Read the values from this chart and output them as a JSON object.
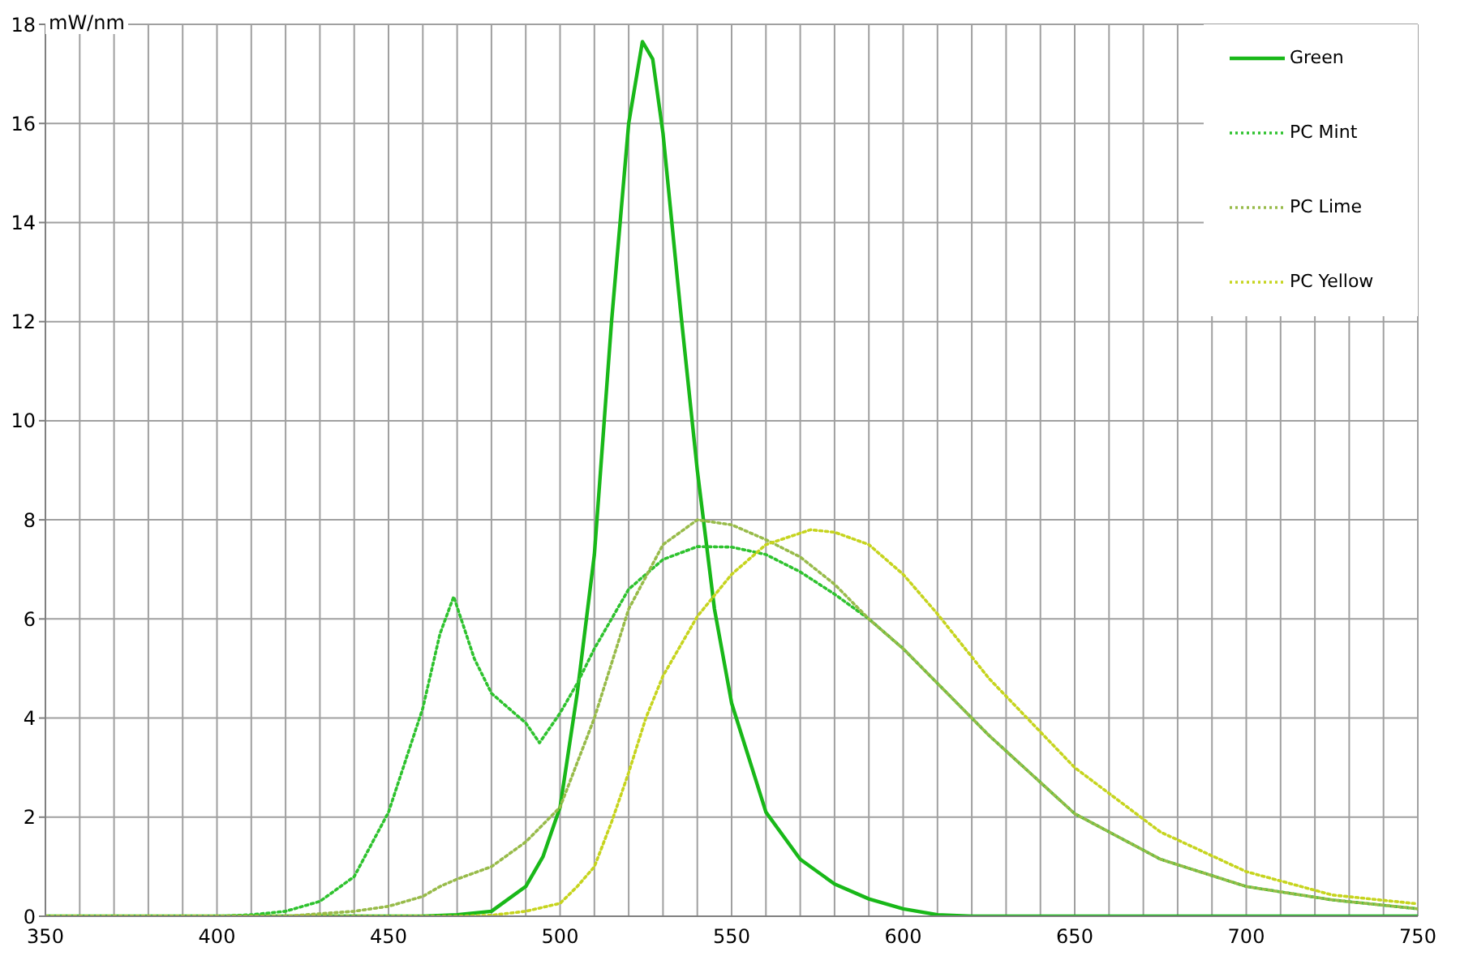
{
  "chart_data": {
    "type": "line",
    "ylabel": "mW/nm",
    "xlim": [
      350,
      750
    ],
    "ylim": [
      0,
      18
    ],
    "xticks": [
      350,
      {
        "value": 360,
        "label": null
      },
      {
        "value": 370,
        "label": null
      },
      {
        "value": 380,
        "label": null
      },
      {
        "value": 390,
        "label": null
      },
      400,
      {
        "value": 410,
        "label": null
      },
      {
        "value": 420,
        "label": null
      },
      {
        "value": 430,
        "label": null
      },
      {
        "value": 440,
        "label": null
      },
      450,
      {
        "value": 460,
        "label": null
      },
      {
        "value": 470,
        "label": null
      },
      {
        "value": 480,
        "label": null
      },
      {
        "value": 490,
        "label": null
      },
      500,
      {
        "value": 510,
        "label": null
      },
      {
        "value": 520,
        "label": null
      },
      {
        "value": 530,
        "label": null
      },
      {
        "value": 540,
        "label": null
      },
      550,
      {
        "value": 560,
        "label": null
      },
      {
        "value": 570,
        "label": null
      },
      {
        "value": 580,
        "label": null
      },
      {
        "value": 590,
        "label": null
      },
      600,
      {
        "value": 610,
        "label": null
      },
      {
        "value": 620,
        "label": null
      },
      {
        "value": 630,
        "label": null
      },
      {
        "value": 640,
        "label": null
      },
      650,
      {
        "value": 660,
        "label": null
      },
      {
        "value": 670,
        "label": null
      },
      {
        "value": 680,
        "label": null
      },
      {
        "value": 690,
        "label": null
      },
      700,
      {
        "value": 710,
        "label": null
      },
      {
        "value": 720,
        "label": null
      },
      {
        "value": 730,
        "label": null
      },
      {
        "value": 740,
        "label": null
      },
      750
    ],
    "yticks": [
      0,
      2,
      4,
      6,
      8,
      10,
      12,
      14,
      16,
      18
    ],
    "grid": true,
    "legend": "top right",
    "marker": "none",
    "series": [
      {
        "name": "Green",
        "color": "#19b819",
        "line_style": "solid",
        "x": [
          350,
          460,
          470,
          480,
          490,
          495,
          500,
          505,
          510,
          515,
          520,
          524,
          527,
          530,
          535,
          540,
          545,
          550,
          560,
          570,
          580,
          590,
          600,
          610,
          620,
          750
        ],
        "values": [
          0,
          0,
          0.03,
          0.1,
          0.6,
          1.2,
          2.2,
          4.5,
          7.3,
          12,
          16,
          17.65,
          17.3,
          15.8,
          12.3,
          9,
          6.2,
          4.3,
          2.1,
          1.15,
          0.65,
          0.35,
          0.15,
          0.03,
          0,
          0
        ]
      },
      {
        "name": "PC Mint",
        "color": "#2ec22e",
        "line_style": "dotted",
        "x": [
          350,
          400,
          410,
          420,
          430,
          440,
          450,
          460,
          465,
          469,
          475,
          480,
          485,
          490,
          494,
          500,
          505,
          510,
          515,
          520,
          530,
          540,
          550,
          560,
          570,
          580,
          590,
          600,
          625,
          650,
          675,
          700,
          725,
          750
        ],
        "values": [
          0,
          0,
          0.03,
          0.1,
          0.3,
          0.8,
          2.1,
          4.2,
          5.7,
          6.45,
          5.2,
          4.5,
          4.2,
          3.9,
          3.5,
          4.1,
          4.7,
          5.4,
          6.0,
          6.6,
          7.2,
          7.46,
          7.45,
          7.3,
          6.95,
          6.5,
          6.0,
          5.4,
          3.65,
          2.07,
          1.15,
          0.6,
          0.33,
          0.15
        ]
      },
      {
        "name": "PC Lime",
        "color": "#98bb4a",
        "line_style": "dotted",
        "x": [
          350,
          420,
          430,
          440,
          450,
          460,
          465,
          470,
          480,
          490,
          500,
          505,
          510,
          515,
          520,
          530,
          540,
          550,
          560,
          570,
          580,
          590,
          600,
          625,
          650,
          675,
          700,
          725,
          750
        ],
        "values": [
          0,
          0,
          0.05,
          0.1,
          0.2,
          0.4,
          0.6,
          0.75,
          1.0,
          1.5,
          2.2,
          3.1,
          4.0,
          5.1,
          6.2,
          7.5,
          8.0,
          7.9,
          7.6,
          7.25,
          6.7,
          6.0,
          5.4,
          3.65,
          2.07,
          1.15,
          0.6,
          0.33,
          0.15
        ]
      },
      {
        "name": "PC Yellow",
        "color": "#c6d41e",
        "line_style": "dotted",
        "x": [
          350,
          470,
          480,
          490,
          500,
          505,
          510,
          515,
          520,
          525,
          530,
          540,
          550,
          560,
          573,
          580,
          590,
          600,
          610,
          625,
          650,
          675,
          700,
          725,
          750
        ],
        "values": [
          0,
          0,
          0.02,
          0.1,
          0.26,
          0.6,
          1.0,
          1.9,
          2.9,
          4.0,
          4.85,
          6.05,
          6.9,
          7.5,
          7.8,
          7.75,
          7.5,
          6.9,
          6.1,
          4.8,
          3.0,
          1.7,
          0.9,
          0.43,
          0.25
        ]
      }
    ]
  }
}
